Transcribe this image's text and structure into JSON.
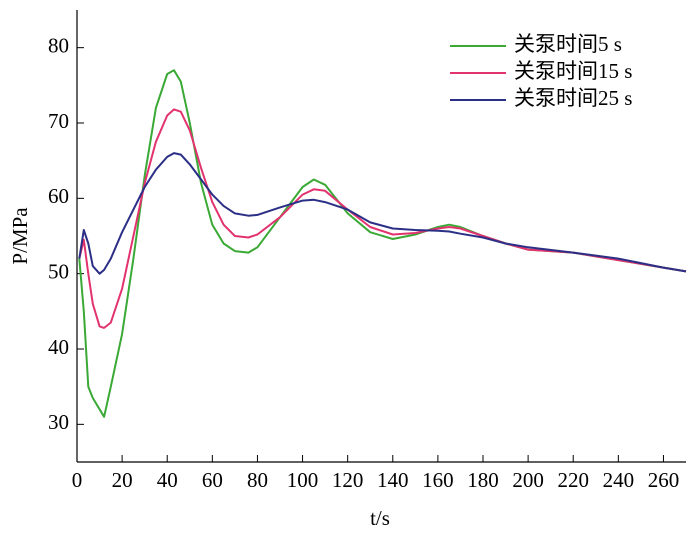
{
  "chart_data": {
    "type": "line",
    "x_label": "t/s",
    "y_label": "P/MPa",
    "x": [
      1,
      3,
      5,
      7,
      10,
      12,
      15,
      20,
      25,
      30,
      35,
      40,
      43,
      46,
      50,
      55,
      60,
      65,
      70,
      76,
      80,
      90,
      100,
      105,
      110,
      120,
      130,
      140,
      150,
      160,
      165,
      170,
      180,
      190,
      200,
      220,
      240,
      260,
      270
    ],
    "series": [
      {
        "name": "关泵时间5 s",
        "color": "#3aa935",
        "values": [
          52,
          45,
          35,
          33.5,
          32,
          31,
          35,
          42,
          52,
          63,
          72,
          76.5,
          77,
          75.5,
          70,
          62,
          56.5,
          54,
          53,
          52.8,
          53.5,
          57.5,
          61.5,
          62.5,
          61.8,
          58,
          55.5,
          54.6,
          55.2,
          56.2,
          56.5,
          56.2,
          55,
          54,
          53.2,
          52.8,
          51.8,
          50.8,
          50.3
        ]
      },
      {
        "name": "关泵时间15 s",
        "color": "#e2336f",
        "values": [
          52,
          54.5,
          50,
          46,
          43,
          42.8,
          43.5,
          48,
          55,
          62,
          67.5,
          71,
          71.8,
          71.5,
          69,
          64,
          59.5,
          56.5,
          55,
          54.8,
          55.2,
          57.5,
          60.5,
          61.2,
          61,
          58.5,
          56.2,
          55.2,
          55.4,
          56,
          56.2,
          56,
          55,
          54,
          53.2,
          52.8,
          51.8,
          50.8,
          50.3
        ]
      },
      {
        "name": "关泵时间25 s",
        "color": "#2b2f86",
        "values": [
          52,
          55.8,
          54,
          51,
          50,
          50.5,
          52,
          55.5,
          58.5,
          61.5,
          63.8,
          65.5,
          66,
          65.8,
          64.5,
          62.5,
          60.5,
          59,
          58,
          57.7,
          57.8,
          58.8,
          59.7,
          59.8,
          59.5,
          58.5,
          56.8,
          56,
          55.8,
          55.7,
          55.6,
          55.3,
          54.8,
          54,
          53.5,
          52.8,
          52,
          50.8,
          50.3
        ]
      }
    ],
    "xlim": [
      0,
      270
    ],
    "xticks": [
      0,
      20,
      40,
      60,
      80,
      100,
      120,
      140,
      160,
      180,
      200,
      220,
      240,
      260
    ],
    "ylim": [
      25,
      85
    ],
    "yticks": [
      30,
      40,
      50,
      60,
      70,
      80
    ],
    "legend": "upper right"
  }
}
